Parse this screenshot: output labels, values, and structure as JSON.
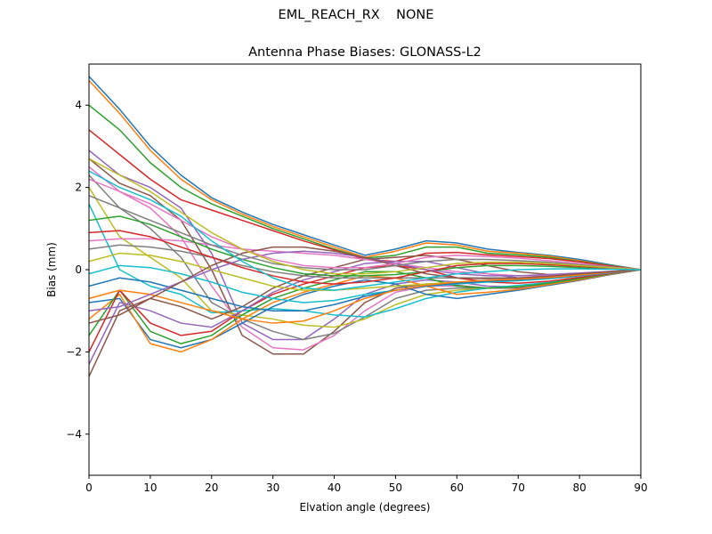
{
  "figure": {
    "suptitle": "EML_REACH_RX    NONE"
  },
  "chart_data": {
    "type": "line",
    "title": "Antenna Phase Biases: GLONASS-L2",
    "xlabel": "Elvation angle (degrees)",
    "ylabel": "Bias (mm)",
    "xlim": [
      0,
      90
    ],
    "ylim": [
      -5,
      5
    ],
    "xticks": [
      0,
      10,
      20,
      30,
      40,
      50,
      60,
      70,
      80,
      90
    ],
    "yticks": [
      -4,
      -2,
      0,
      2,
      4
    ],
    "xtick_labels": [
      "0",
      "10",
      "20",
      "30",
      "40",
      "50",
      "60",
      "70",
      "80",
      "90"
    ],
    "ytick_labels": [
      "−4",
      "−2",
      "0",
      "2",
      "4"
    ],
    "grid": false,
    "legend": "none",
    "x": [
      0,
      5,
      10,
      15,
      20,
      25,
      30,
      35,
      40,
      45,
      50,
      55,
      60,
      65,
      70,
      75,
      80,
      85,
      90
    ],
    "colors": [
      "#1f77b4",
      "#ff7f0e",
      "#2ca02c",
      "#d62728",
      "#9467bd",
      "#8c564b",
      "#e377c2",
      "#7f7f7f",
      "#bcbd22",
      "#17becf"
    ],
    "series": [
      {
        "values": [
          4.7,
          3.9,
          3.0,
          2.3,
          1.75,
          1.4,
          1.1,
          0.85,
          0.6,
          0.35,
          0.5,
          0.7,
          0.65,
          0.5,
          0.42,
          0.35,
          0.25,
          0.12,
          0
        ]
      },
      {
        "values": [
          4.6,
          3.8,
          2.9,
          2.2,
          1.7,
          1.35,
          1.05,
          0.8,
          0.55,
          0.3,
          0.45,
          0.65,
          0.6,
          0.45,
          0.4,
          0.33,
          0.22,
          0.1,
          0
        ]
      },
      {
        "values": [
          4.0,
          3.4,
          2.6,
          2.0,
          1.6,
          1.3,
          1.0,
          0.75,
          0.5,
          0.28,
          0.35,
          0.55,
          0.55,
          0.4,
          0.36,
          0.3,
          0.2,
          0.1,
          0
        ]
      },
      {
        "values": [
          3.4,
          2.8,
          2.2,
          1.7,
          1.45,
          1.2,
          0.95,
          0.7,
          0.48,
          0.25,
          0.2,
          0.4,
          0.42,
          0.36,
          0.32,
          0.27,
          0.19,
          0.09,
          0
        ]
      },
      {
        "values": [
          2.9,
          2.3,
          2.0,
          1.5,
          0.4,
          -1.3,
          -1.7,
          -1.7,
          -1.2,
          -0.6,
          -0.35,
          -0.25,
          -0.3,
          -0.4,
          -0.42,
          -0.35,
          -0.25,
          -0.12,
          0
        ]
      },
      {
        "values": [
          2.7,
          2.1,
          1.8,
          1.2,
          0.0,
          -1.6,
          -2.05,
          -2.05,
          -1.5,
          -0.8,
          -0.45,
          -0.35,
          -0.38,
          -0.45,
          -0.45,
          -0.38,
          -0.26,
          -0.12,
          0
        ]
      },
      {
        "values": [
          2.5,
          1.9,
          1.5,
          0.8,
          -0.4,
          -1.4,
          -1.9,
          -1.95,
          -1.6,
          -1.0,
          -0.55,
          -0.4,
          -0.4,
          -0.45,
          -0.43,
          -0.36,
          -0.25,
          -0.11,
          0
        ]
      },
      {
        "values": [
          2.3,
          1.5,
          1.0,
          0.3,
          -0.8,
          -1.2,
          -1.5,
          -1.7,
          -1.55,
          -1.15,
          -0.7,
          -0.5,
          -0.45,
          -0.45,
          -0.42,
          -0.35,
          -0.24,
          -0.11,
          0
        ]
      },
      {
        "values": [
          2.0,
          0.8,
          0.3,
          -0.2,
          -1.0,
          -1.1,
          -1.2,
          -1.35,
          -1.4,
          -1.2,
          -0.85,
          -0.6,
          -0.5,
          -0.45,
          -0.4,
          -0.33,
          -0.23,
          -0.1,
          0
        ]
      },
      {
        "values": [
          1.6,
          0.0,
          -0.4,
          -0.6,
          -1.05,
          -1.0,
          -0.95,
          -1.0,
          -1.1,
          -1.15,
          -0.95,
          -0.7,
          -0.55,
          -0.45,
          -0.38,
          -0.31,
          -0.21,
          -0.1,
          0
        ]
      },
      {
        "values": [
          -0.8,
          -0.7,
          -1.7,
          -1.9,
          -1.7,
          -1.3,
          -0.9,
          -0.6,
          -0.4,
          -0.25,
          -0.35,
          -0.6,
          -0.7,
          -0.6,
          -0.5,
          -0.38,
          -0.25,
          -0.12,
          0
        ]
      },
      {
        "values": [
          -1.2,
          -0.6,
          -1.8,
          -2.0,
          -1.7,
          -1.2,
          -0.8,
          -0.55,
          -0.35,
          -0.15,
          -0.2,
          -0.4,
          -0.6,
          -0.55,
          -0.48,
          -0.36,
          -0.24,
          -0.11,
          0
        ]
      },
      {
        "values": [
          -1.6,
          -0.5,
          -1.5,
          -1.8,
          -1.6,
          -1.1,
          -0.7,
          -0.45,
          -0.25,
          -0.05,
          -0.05,
          -0.2,
          -0.4,
          -0.45,
          -0.42,
          -0.33,
          -0.22,
          -0.1,
          0
        ]
      },
      {
        "values": [
          -2.0,
          -0.5,
          -1.3,
          -1.6,
          -1.5,
          -1.0,
          -0.6,
          -0.35,
          -0.15,
          0.05,
          0.1,
          0.0,
          -0.2,
          -0.3,
          -0.33,
          -0.28,
          -0.19,
          -0.09,
          0
        ]
      },
      {
        "values": [
          -2.3,
          -0.8,
          -1.0,
          -1.3,
          -1.4,
          -1.0,
          -0.55,
          -0.25,
          -0.05,
          0.15,
          0.2,
          0.2,
          0.05,
          -0.1,
          -0.2,
          -0.22,
          -0.16,
          -0.08,
          0
        ]
      },
      {
        "values": [
          -2.6,
          -1.0,
          -0.7,
          -0.9,
          -1.2,
          -0.9,
          -0.45,
          -0.15,
          0.05,
          0.25,
          0.3,
          0.35,
          0.25,
          0.1,
          -0.05,
          -0.12,
          -0.1,
          -0.05,
          0
        ]
      },
      {
        "values": [
          0.7,
          0.75,
          0.75,
          0.7,
          0.6,
          0.5,
          0.45,
          0.4,
          0.35,
          0.25,
          0.15,
          0.05,
          -0.05,
          -0.1,
          -0.15,
          -0.15,
          -0.11,
          -0.05,
          0
        ]
      },
      {
        "values": [
          0.5,
          0.6,
          0.55,
          0.45,
          0.3,
          0.1,
          -0.05,
          -0.15,
          -0.2,
          -0.2,
          -0.2,
          -0.2,
          -0.2,
          -0.2,
          -0.2,
          -0.18,
          -0.13,
          -0.06,
          0
        ]
      },
      {
        "values": [
          0.2,
          0.4,
          0.35,
          0.2,
          0.0,
          -0.2,
          -0.4,
          -0.5,
          -0.5,
          -0.45,
          -0.4,
          -0.35,
          -0.3,
          -0.28,
          -0.26,
          -0.22,
          -0.15,
          -0.07,
          0
        ]
      },
      {
        "values": [
          -0.1,
          0.1,
          0.05,
          -0.1,
          -0.3,
          -0.55,
          -0.7,
          -0.8,
          -0.75,
          -0.6,
          -0.5,
          -0.4,
          -0.35,
          -0.3,
          -0.27,
          -0.22,
          -0.15,
          -0.07,
          0
        ]
      },
      {
        "values": [
          -0.4,
          -0.2,
          -0.3,
          -0.5,
          -0.7,
          -0.9,
          -1.0,
          -1.0,
          -0.85,
          -0.65,
          -0.5,
          -0.4,
          -0.33,
          -0.28,
          -0.25,
          -0.2,
          -0.14,
          -0.07,
          0
        ]
      },
      {
        "values": [
          -0.7,
          -0.5,
          -0.6,
          -0.8,
          -1.0,
          -1.2,
          -1.3,
          -1.25,
          -1.0,
          -0.7,
          -0.5,
          -0.38,
          -0.3,
          -0.26,
          -0.23,
          -0.19,
          -0.13,
          -0.06,
          0
        ]
      },
      {
        "values": [
          1.2,
          1.3,
          1.1,
          0.8,
          0.5,
          0.25,
          0.05,
          -0.1,
          -0.15,
          -0.15,
          -0.12,
          -0.05,
          0.05,
          0.1,
          0.1,
          0.08,
          0.05,
          0.02,
          0
        ]
      },
      {
        "values": [
          0.9,
          0.95,
          0.8,
          0.55,
          0.3,
          0.05,
          -0.15,
          -0.3,
          -0.35,
          -0.3,
          -0.2,
          -0.05,
          0.1,
          0.15,
          0.15,
          0.12,
          0.08,
          0.04,
          0
        ]
      },
      {
        "values": [
          -1.0,
          -0.9,
          -0.6,
          -0.3,
          0.0,
          0.25,
          0.4,
          0.45,
          0.4,
          0.3,
          0.15,
          0.0,
          -0.1,
          -0.15,
          -0.15,
          -0.12,
          -0.08,
          -0.04,
          0
        ]
      },
      {
        "values": [
          -1.3,
          -1.1,
          -0.7,
          -0.3,
          0.1,
          0.4,
          0.55,
          0.55,
          0.45,
          0.3,
          0.1,
          -0.1,
          -0.2,
          -0.22,
          -0.2,
          -0.16,
          -0.1,
          -0.05,
          0
        ]
      },
      {
        "values": [
          2.2,
          1.9,
          1.6,
          1.2,
          0.8,
          0.5,
          0.25,
          0.1,
          0.05,
          0.05,
          0.15,
          0.3,
          0.35,
          0.32,
          0.28,
          0.22,
          0.15,
          0.07,
          0
        ]
      },
      {
        "values": [
          1.8,
          1.5,
          1.2,
          0.9,
          0.6,
          0.35,
          0.15,
          0.05,
          0.0,
          0.0,
          0.1,
          0.2,
          0.25,
          0.25,
          0.22,
          0.18,
          0.12,
          0.06,
          0
        ]
      },
      {
        "values": [
          2.7,
          2.3,
          1.9,
          1.4,
          0.9,
          0.5,
          0.2,
          0.0,
          -0.1,
          -0.1,
          -0.05,
          0.05,
          0.15,
          0.18,
          0.18,
          0.15,
          0.1,
          0.05,
          0
        ]
      },
      {
        "values": [
          2.4,
          2.0,
          1.7,
          1.3,
          0.7,
          0.2,
          -0.2,
          -0.45,
          -0.5,
          -0.4,
          -0.3,
          -0.2,
          -0.1,
          -0.05,
          0.0,
          0.02,
          0.02,
          0.01,
          0
        ]
      }
    ]
  }
}
